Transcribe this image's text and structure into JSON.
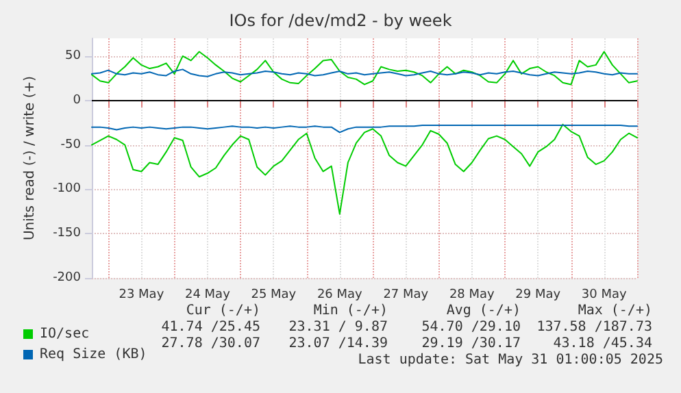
{
  "chart_data": {
    "type": "line",
    "title": "IOs for /dev/md2 - by week",
    "ylabel": "Units read (-) / write (+)",
    "x": [
      "2025-05-22T18:00",
      "2025-05-22T21:00",
      "2025-05-23T00:00",
      "2025-05-23T03:00",
      "2025-05-23T06:00",
      "2025-05-23T09:00",
      "2025-05-23T12:00",
      "2025-05-23T15:00",
      "2025-05-23T18:00",
      "2025-05-23T21:00",
      "2025-05-24T00:00",
      "2025-05-24T03:00",
      "2025-05-24T06:00",
      "2025-05-24T09:00",
      "2025-05-24T12:00",
      "2025-05-24T15:00",
      "2025-05-24T18:00",
      "2025-05-24T21:00",
      "2025-05-25T00:00",
      "2025-05-25T03:00",
      "2025-05-25T06:00",
      "2025-05-25T09:00",
      "2025-05-25T12:00",
      "2025-05-25T15:00",
      "2025-05-25T18:00",
      "2025-05-25T21:00",
      "2025-05-26T00:00",
      "2025-05-26T03:00",
      "2025-05-26T06:00",
      "2025-05-26T09:00",
      "2025-05-26T12:00",
      "2025-05-26T15:00",
      "2025-05-26T18:00",
      "2025-05-26T21:00",
      "2025-05-27T00:00",
      "2025-05-27T03:00",
      "2025-05-27T06:00",
      "2025-05-27T09:00",
      "2025-05-27T12:00",
      "2025-05-27T15:00",
      "2025-05-27T18:00",
      "2025-05-27T21:00",
      "2025-05-28T00:00",
      "2025-05-28T03:00",
      "2025-05-28T06:00",
      "2025-05-28T09:00",
      "2025-05-28T12:00",
      "2025-05-28T15:00",
      "2025-05-28T18:00",
      "2025-05-28T21:00",
      "2025-05-29T00:00",
      "2025-05-29T03:00",
      "2025-05-29T06:00",
      "2025-05-29T09:00",
      "2025-05-29T12:00",
      "2025-05-29T15:00",
      "2025-05-29T18:00",
      "2025-05-29T21:00",
      "2025-05-30T00:00",
      "2025-05-30T03:00",
      "2025-05-30T06:00",
      "2025-05-30T09:00",
      "2025-05-30T12:00",
      "2025-05-30T15:00",
      "2025-05-30T18:00",
      "2025-05-30T21:00",
      "2025-05-31T00:00"
    ],
    "series": [
      {
        "name": "IO/sec",
        "color": "#00cc00",
        "values": [
          29,
          22,
          20,
          30,
          38,
          48,
          40,
          36,
          38,
          42,
          30,
          50,
          45,
          55,
          48,
          40,
          33,
          25,
          21,
          28,
          35,
          45,
          32,
          24,
          20,
          19,
          28,
          36,
          45,
          46,
          33,
          26,
          24,
          18,
          22,
          38,
          35,
          33,
          34,
          32,
          28,
          20,
          30,
          38,
          30,
          34,
          32,
          28,
          21,
          20,
          30,
          45,
          30,
          36,
          38,
          32,
          28,
          20,
          18,
          45,
          38,
          40,
          55,
          40,
          30,
          20,
          22
        ]
      },
      {
        "color": "#00cc00",
        "values": [
          -50,
          -45,
          -40,
          -44,
          -50,
          -78,
          -80,
          -70,
          -72,
          -58,
          -42,
          -45,
          -75,
          -86,
          -82,
          -76,
          -62,
          -50,
          -40,
          -44,
          -75,
          -84,
          -74,
          -68,
          -56,
          -44,
          -37,
          -65,
          -80,
          -74,
          -128,
          -70,
          -48,
          -36,
          -32,
          -40,
          -62,
          -70,
          -74,
          -62,
          -50,
          -34,
          -38,
          -48,
          -72,
          -80,
          -70,
          -56,
          -43,
          -40,
          -44,
          -52,
          -60,
          -74,
          -58,
          -52,
          -44,
          -27,
          -35,
          -40,
          -64,
          -72,
          -68,
          -58,
          -44,
          -37,
          -42
        ]
      },
      {
        "name": "Req Size (KB)",
        "color": "#0066b3",
        "values": [
          30,
          31,
          34,
          30,
          29,
          31,
          30,
          32,
          29,
          28,
          33,
          35,
          30,
          28,
          27,
          30,
          32,
          31,
          29,
          30,
          31,
          33,
          32,
          30,
          29,
          31,
          30,
          28,
          29,
          31,
          33,
          30,
          31,
          29,
          30,
          31,
          32,
          30,
          28,
          29,
          31,
          33,
          30,
          29,
          30,
          32,
          31,
          29,
          31,
          30,
          32,
          33,
          31,
          29,
          28,
          30,
          32,
          31,
          30,
          31,
          33,
          32,
          30,
          29,
          31,
          30,
          30
        ]
      },
      {
        "color": "#0066b3",
        "values": [
          -30,
          -30,
          -31,
          -33,
          -31,
          -30,
          -31,
          -30,
          -31,
          -32,
          -31,
          -30,
          -30,
          -31,
          -32,
          -31,
          -30,
          -29,
          -30,
          -30,
          -31,
          -30,
          -31,
          -30,
          -29,
          -30,
          -30,
          -29,
          -30,
          -30,
          -36,
          -32,
          -30,
          -30,
          -30,
          -30,
          -29,
          -29,
          -29,
          -29,
          -28,
          -28,
          -28,
          -28,
          -28,
          -28,
          -28,
          -28,
          -28,
          -28,
          -28,
          -28,
          -28,
          -28,
          -28,
          -28,
          -28,
          -28,
          -28,
          -28,
          -28,
          -28,
          -28,
          -28,
          -28,
          -29,
          -29
        ]
      }
    ],
    "xlim": [
      "2025-05-22T18:00",
      "2025-05-31T00:00"
    ],
    "xticks": [
      {
        "value": "2025-05-23T00:00",
        "label": null
      },
      {
        "value": "2025-05-23T12:00",
        "label": "23 May"
      },
      {
        "value": "2025-05-24T00:00",
        "label": null
      },
      {
        "value": "2025-05-24T12:00",
        "label": "24 May"
      },
      {
        "value": "2025-05-25T00:00",
        "label": null
      },
      {
        "value": "2025-05-25T12:00",
        "label": "25 May"
      },
      {
        "value": "2025-05-26T00:00",
        "label": null
      },
      {
        "value": "2025-05-26T12:00",
        "label": "26 May"
      },
      {
        "value": "2025-05-27T00:00",
        "label": null
      },
      {
        "value": "2025-05-27T12:00",
        "label": "27 May"
      },
      {
        "value": "2025-05-28T00:00",
        "label": null
      },
      {
        "value": "2025-05-28T12:00",
        "label": "28 May"
      },
      {
        "value": "2025-05-29T00:00",
        "label": null
      },
      {
        "value": "2025-05-29T12:00",
        "label": "29 May"
      },
      {
        "value": "2025-05-30T00:00",
        "label": null
      },
      {
        "value": "2025-05-30T12:00",
        "label": "30 May"
      },
      {
        "value": "2025-05-31T00:00",
        "label": null
      }
    ],
    "ylim": [
      -200,
      70
    ],
    "yticks": [
      -200,
      -150,
      -100,
      -50,
      0,
      50
    ],
    "ref_lines": [
      {
        "axis": "y",
        "value": 0,
        "color": "#000000"
      }
    ],
    "grid": true,
    "legend": "bottom left",
    "marker": "none",
    "line_style": "solid",
    "annotations": [
      "Cur (-/+)",
      "Min (-/+)",
      "Avg (-/+)",
      "Max (-/+)",
      "41.74 /25.45",
      "23.31 / 9.87",
      "54.70 /29.10",
      "137.58 /187.73",
      "27.78 /30.07",
      "23.07 /14.39",
      "29.19 /30.17",
      "43.18 /45.34",
      "Last update: Sat May 31 01:00:05 2025"
    ]
  }
}
